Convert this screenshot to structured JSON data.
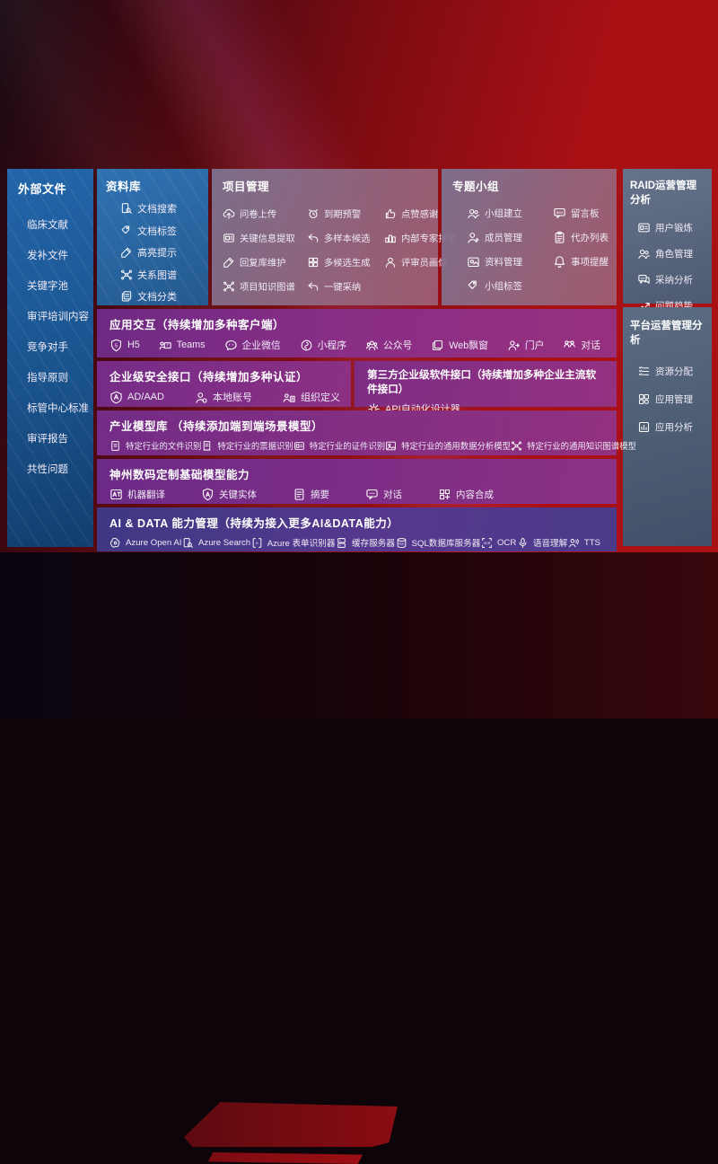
{
  "colors": {
    "background_red": "#a81014",
    "source_panel_blue": "#2a66a5",
    "function_panel_mauve": "#8b6b83",
    "capability_row_purple": "#832f84",
    "aidata_row_indigo": "#473a86",
    "analysis_panel_slate": "#5d6a7e"
  },
  "panels": {
    "sidebar": {
      "title": "外部文件",
      "items": [
        {
          "label": "临床文献"
        },
        {
          "label": "发补文件"
        },
        {
          "label": "关键字池"
        },
        {
          "label": "审评培训内容"
        },
        {
          "label": "竞争对手"
        },
        {
          "label": "指导原则"
        },
        {
          "label": "标管中心标准"
        },
        {
          "label": "审评报告"
        },
        {
          "label": "共性问题"
        }
      ]
    },
    "repo": {
      "title": "资料库",
      "items": [
        {
          "label": "文档搜索",
          "icon": "doc-search"
        },
        {
          "label": "文档标签",
          "icon": "tag"
        },
        {
          "label": "高亮提示",
          "icon": "highlight"
        },
        {
          "label": "关系图谱",
          "icon": "graph"
        },
        {
          "label": "文档分类",
          "icon": "docs"
        }
      ]
    },
    "project": {
      "title": "项目管理",
      "items": [
        {
          "label": "问卷上传",
          "icon": "cloud-upload"
        },
        {
          "label": "到期预警",
          "icon": "alarm"
        },
        {
          "label": "点赞感谢",
          "icon": "thumb-up"
        },
        {
          "label": "关键信息提取",
          "icon": "extract"
        },
        {
          "label": "多样本候选",
          "icon": "reply"
        },
        {
          "label": "内部专家排名",
          "icon": "ranking"
        },
        {
          "label": "回复库维护",
          "icon": "edit"
        },
        {
          "label": "多候选生成",
          "icon": "grid"
        },
        {
          "label": "评审员画像",
          "icon": "person"
        },
        {
          "label": "项目知识图谱",
          "icon": "graph"
        },
        {
          "label": "一键采纳",
          "icon": "adopt-arrow"
        }
      ]
    },
    "groups": {
      "title": "专题小组",
      "items": [
        {
          "label": "小组建立",
          "icon": "people"
        },
        {
          "label": "留言板",
          "icon": "bbs"
        },
        {
          "label": "成员管理",
          "icon": "person-add"
        },
        {
          "label": "代办列表",
          "icon": "clipboard"
        },
        {
          "label": "资料管理",
          "icon": "folder-media"
        },
        {
          "label": "事项提醒",
          "icon": "bell"
        },
        {
          "label": "小组标签",
          "icon": "tag"
        }
      ]
    },
    "raid": {
      "title": "RAID运营管理分析",
      "items": [
        {
          "label": "用户锻炼",
          "icon": "id-card"
        },
        {
          "label": "角色管理",
          "icon": "people"
        },
        {
          "label": "采纳分析",
          "icon": "chat-qa"
        },
        {
          "label": "问题趋势",
          "icon": "trend"
        }
      ]
    },
    "platform": {
      "title": "平台运营管理分析",
      "items": [
        {
          "label": "资源分配",
          "icon": "list"
        },
        {
          "label": "应用管理",
          "icon": "app-grid"
        },
        {
          "label": "应用分析",
          "icon": "chart-report"
        }
      ]
    },
    "interact": {
      "title": "应用交互（持续增加多种客户端）",
      "items": [
        {
          "label": "H5",
          "icon": "h5"
        },
        {
          "label": "Teams",
          "icon": "teams"
        },
        {
          "label": "企业微信",
          "icon": "wechat-work"
        },
        {
          "label": "小程序",
          "icon": "mini-program"
        },
        {
          "label": "公众号",
          "icon": "official-account"
        },
        {
          "label": "Web飘窗",
          "icon": "web-window"
        },
        {
          "label": "门户",
          "icon": "portal"
        },
        {
          "label": "对话",
          "icon": "dialog"
        }
      ]
    },
    "security": {
      "title": "企业级安全接口（持续增加多种认证）",
      "items": [
        {
          "label": "AD/AAD",
          "icon": "ad-shield"
        },
        {
          "label": "本地账号",
          "icon": "local-account"
        },
        {
          "label": "组织定义",
          "icon": "org-define"
        }
      ]
    },
    "third": {
      "title": "第三方企业级软件接口（持续增加多种企业主流软件接口）",
      "items": [
        {
          "label": "API自动化设计器",
          "icon": "api-gear"
        }
      ]
    },
    "industry": {
      "title": "产业模型库 （持续添加端到端场景模型）",
      "items": [
        {
          "label": "特定行业的文件识别",
          "icon": "doc"
        },
        {
          "label": "特定行业的票据识别",
          "icon": "receipt"
        },
        {
          "label": "特定行业的证件识别",
          "icon": "id-card"
        },
        {
          "label": "特定行业的通用数据分析模型",
          "icon": "image-analyze"
        },
        {
          "label": "特定行业的通用知识图谱模型",
          "icon": "graph"
        }
      ]
    },
    "base": {
      "title": "神州数码定制基础模型能力",
      "items": [
        {
          "label": "机器翻译",
          "icon": "translate"
        },
        {
          "label": "关键实体",
          "icon": "entity"
        },
        {
          "label": "摘要",
          "icon": "summary"
        },
        {
          "label": "对话",
          "icon": "chat"
        },
        {
          "label": "内容合成",
          "icon": "compose"
        }
      ]
    },
    "aidata": {
      "title": "AI & DATA 能力管理（持续为接入更多AI&DATA能力）",
      "items": [
        {
          "label": "Azure Open AI",
          "icon": "openai"
        },
        {
          "label": "Azure Search",
          "icon": "azure-search"
        },
        {
          "label": "Azure 表单识别器",
          "icon": "form-recognizer"
        },
        {
          "label": "缓存服务器",
          "icon": "cache-server"
        },
        {
          "label": "SQL数据库服务器",
          "icon": "sql-db"
        },
        {
          "label": "OCR",
          "icon": "ocr"
        },
        {
          "label": "语音理解",
          "icon": "speech"
        },
        {
          "label": "TTS",
          "icon": "tts"
        }
      ]
    }
  }
}
